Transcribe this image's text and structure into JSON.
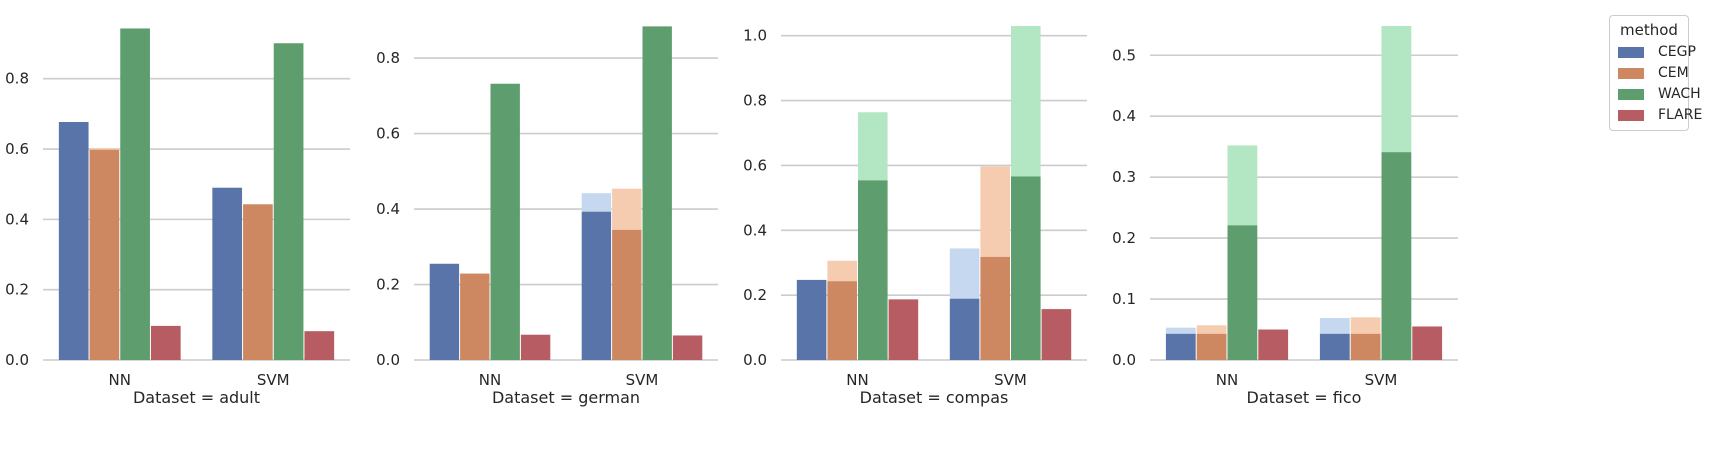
{
  "chart_data": {
    "type": "bar",
    "legend": {
      "title": "method",
      "placement": "top-right",
      "methods": [
        "CEGP",
        "CEM",
        "WACH",
        "FLARE"
      ],
      "colors": [
        "#5874a8",
        "#cd8862",
        "#5e9e6e",
        "#b85c63"
      ],
      "light_colors": [
        "#c5d8f0",
        "#f5ccb0",
        "#b3e6c2",
        "#f0b8bd"
      ]
    },
    "grid": true,
    "panels": [
      {
        "xlabel": "Dataset = adult",
        "categories": [
          "NN",
          "SVM"
        ],
        "ylim": [
          0,
          0.95
        ],
        "yticks": [
          "0.0",
          "0.2",
          "0.4",
          "0.6",
          "0.8"
        ],
        "series": [
          {
            "name": "CEGP",
            "values": [
              0.677,
              0.49
            ],
            "upper": [
              null,
              null
            ]
          },
          {
            "name": "CEM",
            "values": [
              0.598,
              0.443
            ],
            "upper": [
              0.603,
              null
            ]
          },
          {
            "name": "WACH",
            "values": [
              0.943,
              0.901
            ],
            "upper": [
              null,
              null
            ]
          },
          {
            "name": "FLARE",
            "values": [
              0.097,
              0.082
            ],
            "upper": [
              null,
              null
            ]
          }
        ]
      },
      {
        "xlabel": "Dataset = german",
        "categories": [
          "NN",
          "SVM"
        ],
        "ylim": [
          0,
          0.885
        ],
        "yticks": [
          "0.0",
          "0.2",
          "0.4",
          "0.6",
          "0.8"
        ],
        "series": [
          {
            "name": "CEGP",
            "values": [
              0.255,
              0.393
            ],
            "upper": [
              null,
              0.442
            ]
          },
          {
            "name": "CEM",
            "values": [
              0.229,
              0.345
            ],
            "upper": [
              null,
              0.454
            ]
          },
          {
            "name": "WACH",
            "values": [
              0.732,
              0.884
            ],
            "upper": [
              null,
              null
            ]
          },
          {
            "name": "FLARE",
            "values": [
              0.067,
              0.065
            ],
            "upper": [
              null,
              null
            ]
          }
        ]
      },
      {
        "xlabel": "Dataset = compas",
        "categories": [
          "NN",
          "SVM"
        ],
        "ylim": [
          0,
          1.03
        ],
        "yticks": [
          "0.0",
          "0.2",
          "0.4",
          "0.6",
          "0.8",
          "1.0"
        ],
        "series": [
          {
            "name": "CEGP",
            "values": [
              0.247,
              0.189
            ],
            "upper": [
              null,
              0.344
            ]
          },
          {
            "name": "CEM",
            "values": [
              0.243,
              0.318
            ],
            "upper": [
              0.306,
              0.597
            ]
          },
          {
            "name": "WACH",
            "values": [
              0.554,
              0.566
            ],
            "upper": [
              0.764,
              1.03
            ]
          },
          {
            "name": "FLARE",
            "values": [
              0.187,
              0.157
            ],
            "upper": [
              null,
              null
            ]
          }
        ]
      },
      {
        "xlabel": "Dataset = fico",
        "categories": [
          "NN",
          "SVM"
        ],
        "ylim": [
          0,
          0.548
        ],
        "yticks": [
          "0.0",
          "0.1",
          "0.2",
          "0.3",
          "0.4",
          "0.5"
        ],
        "series": [
          {
            "name": "CEGP",
            "values": [
              0.043,
              0.043
            ],
            "upper": [
              0.053,
              0.069
            ]
          },
          {
            "name": "CEM",
            "values": [
              0.043,
              0.043
            ],
            "upper": [
              0.057,
              0.07
            ]
          },
          {
            "name": "WACH",
            "values": [
              0.221,
              0.341
            ],
            "upper": [
              0.352,
              0.548
            ]
          },
          {
            "name": "FLARE",
            "values": [
              0.05,
              0.055
            ],
            "upper": [
              null,
              null
            ]
          }
        ]
      }
    ]
  }
}
